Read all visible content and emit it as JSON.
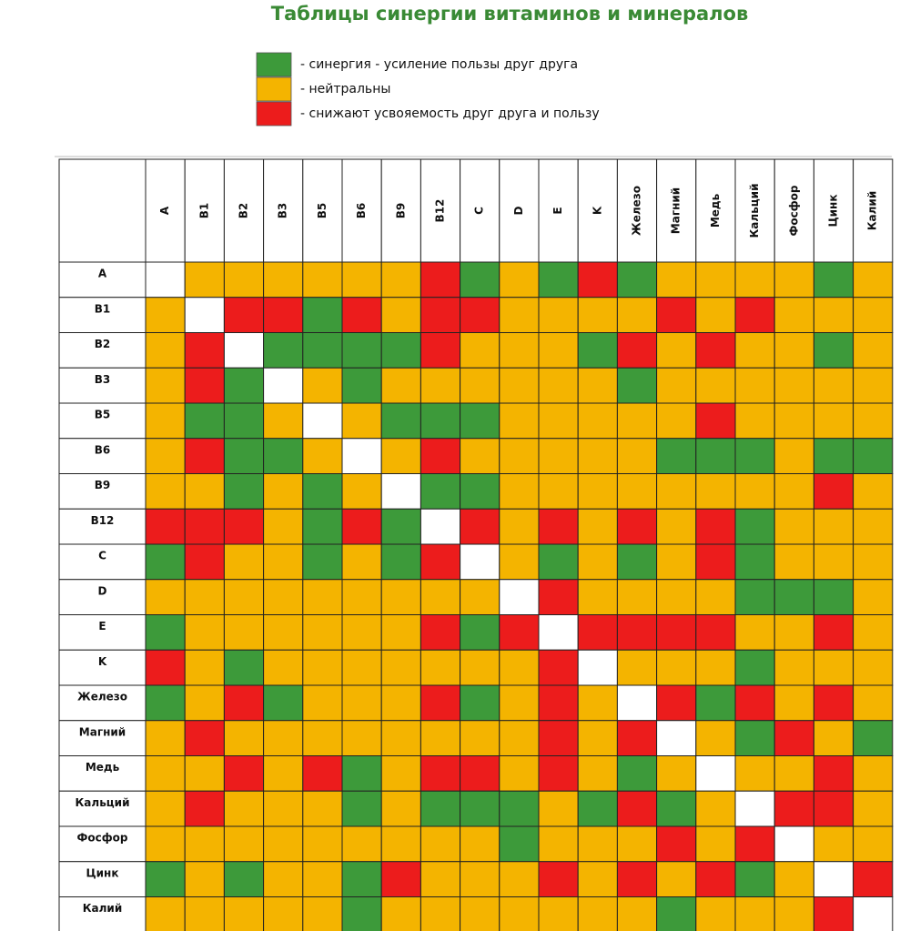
{
  "title": "Таблицы синергии витаминов и минералов",
  "legend": [
    {
      "color": "#3d9a3a",
      "label": "- синергия - усиление пользы друг друга"
    },
    {
      "color": "#f4b400",
      "label": "- нейтральны"
    },
    {
      "color": "#ec1c1c",
      "label": "- снижают усвояемость друг друга и пользу"
    }
  ],
  "columns": [
    "A",
    "B1",
    "B2",
    "B3",
    "B5",
    "B6",
    "B9",
    "B12",
    "C",
    "D",
    "E",
    "K",
    "Железо",
    "Магний",
    "Медь",
    "Кальций",
    "Фосфор",
    "Цинк",
    "Калий"
  ],
  "rows": [
    {
      "label": "A",
      "cells": [
        null,
        1,
        1,
        1,
        1,
        1,
        1,
        2,
        0,
        1,
        0,
        2,
        0,
        1,
        1,
        1,
        1,
        0,
        1
      ]
    },
    {
      "label": "B1",
      "cells": [
        1,
        null,
        2,
        2,
        0,
        2,
        1,
        2,
        2,
        1,
        1,
        1,
        1,
        2,
        1,
        2,
        1,
        1,
        1
      ]
    },
    {
      "label": "B2",
      "cells": [
        1,
        2,
        null,
        0,
        0,
        0,
        0,
        2,
        1,
        1,
        1,
        0,
        2,
        1,
        2,
        1,
        1,
        0,
        1
      ]
    },
    {
      "label": "B3",
      "cells": [
        1,
        2,
        0,
        null,
        1,
        0,
        1,
        1,
        1,
        1,
        1,
        1,
        0,
        1,
        1,
        1,
        1,
        1,
        1
      ]
    },
    {
      "label": "B5",
      "cells": [
        1,
        0,
        0,
        1,
        null,
        1,
        0,
        0,
        0,
        1,
        1,
        1,
        1,
        1,
        2,
        1,
        1,
        1,
        1
      ]
    },
    {
      "label": "B6",
      "cells": [
        1,
        2,
        0,
        0,
        1,
        null,
        1,
        2,
        1,
        1,
        1,
        1,
        1,
        0,
        0,
        0,
        1,
        0,
        0
      ]
    },
    {
      "label": "B9",
      "cells": [
        1,
        1,
        0,
        1,
        0,
        1,
        null,
        0,
        0,
        1,
        1,
        1,
        1,
        1,
        1,
        1,
        1,
        2,
        1
      ]
    },
    {
      "label": "B12",
      "cells": [
        2,
        2,
        2,
        1,
        0,
        2,
        0,
        null,
        2,
        1,
        2,
        1,
        2,
        1,
        2,
        0,
        1,
        1,
        1
      ]
    },
    {
      "label": "C",
      "cells": [
        0,
        2,
        1,
        1,
        0,
        1,
        0,
        2,
        null,
        1,
        0,
        1,
        0,
        1,
        2,
        0,
        1,
        1,
        1
      ]
    },
    {
      "label": "D",
      "cells": [
        1,
        1,
        1,
        1,
        1,
        1,
        1,
        1,
        1,
        null,
        2,
        1,
        1,
        1,
        1,
        0,
        0,
        0,
        1
      ]
    },
    {
      "label": "E",
      "cells": [
        0,
        1,
        1,
        1,
        1,
        1,
        1,
        2,
        0,
        2,
        null,
        2,
        2,
        2,
        2,
        1,
        1,
        2,
        1
      ]
    },
    {
      "label": "K",
      "cells": [
        2,
        1,
        0,
        1,
        1,
        1,
        1,
        1,
        1,
        1,
        2,
        null,
        1,
        1,
        1,
        0,
        1,
        1,
        1
      ]
    },
    {
      "label": "Железо",
      "cells": [
        0,
        1,
        2,
        0,
        1,
        1,
        1,
        2,
        0,
        1,
        2,
        1,
        null,
        2,
        0,
        2,
        1,
        2,
        1
      ]
    },
    {
      "label": "Магний",
      "cells": [
        1,
        2,
        1,
        1,
        1,
        1,
        1,
        1,
        1,
        1,
        2,
        1,
        2,
        null,
        1,
        0,
        2,
        1,
        0
      ]
    },
    {
      "label": "Медь",
      "cells": [
        1,
        1,
        2,
        1,
        2,
        0,
        1,
        2,
        2,
        1,
        2,
        1,
        0,
        1,
        null,
        1,
        1,
        2,
        1
      ]
    },
    {
      "label": "Кальций",
      "cells": [
        1,
        2,
        1,
        1,
        1,
        0,
        1,
        0,
        0,
        0,
        1,
        0,
        2,
        0,
        1,
        null,
        2,
        2,
        1
      ]
    },
    {
      "label": "Фосфор",
      "cells": [
        1,
        1,
        1,
        1,
        1,
        1,
        1,
        1,
        1,
        0,
        1,
        1,
        1,
        2,
        1,
        2,
        null,
        1,
        1
      ]
    },
    {
      "label": "Цинк",
      "cells": [
        0,
        1,
        0,
        1,
        1,
        0,
        2,
        1,
        1,
        1,
        2,
        1,
        2,
        1,
        2,
        0,
        1,
        null,
        2
      ]
    },
    {
      "label": "Калий",
      "cells": [
        1,
        1,
        1,
        1,
        1,
        0,
        1,
        1,
        1,
        1,
        1,
        1,
        1,
        0,
        1,
        1,
        1,
        2,
        null
      ]
    }
  ]
}
